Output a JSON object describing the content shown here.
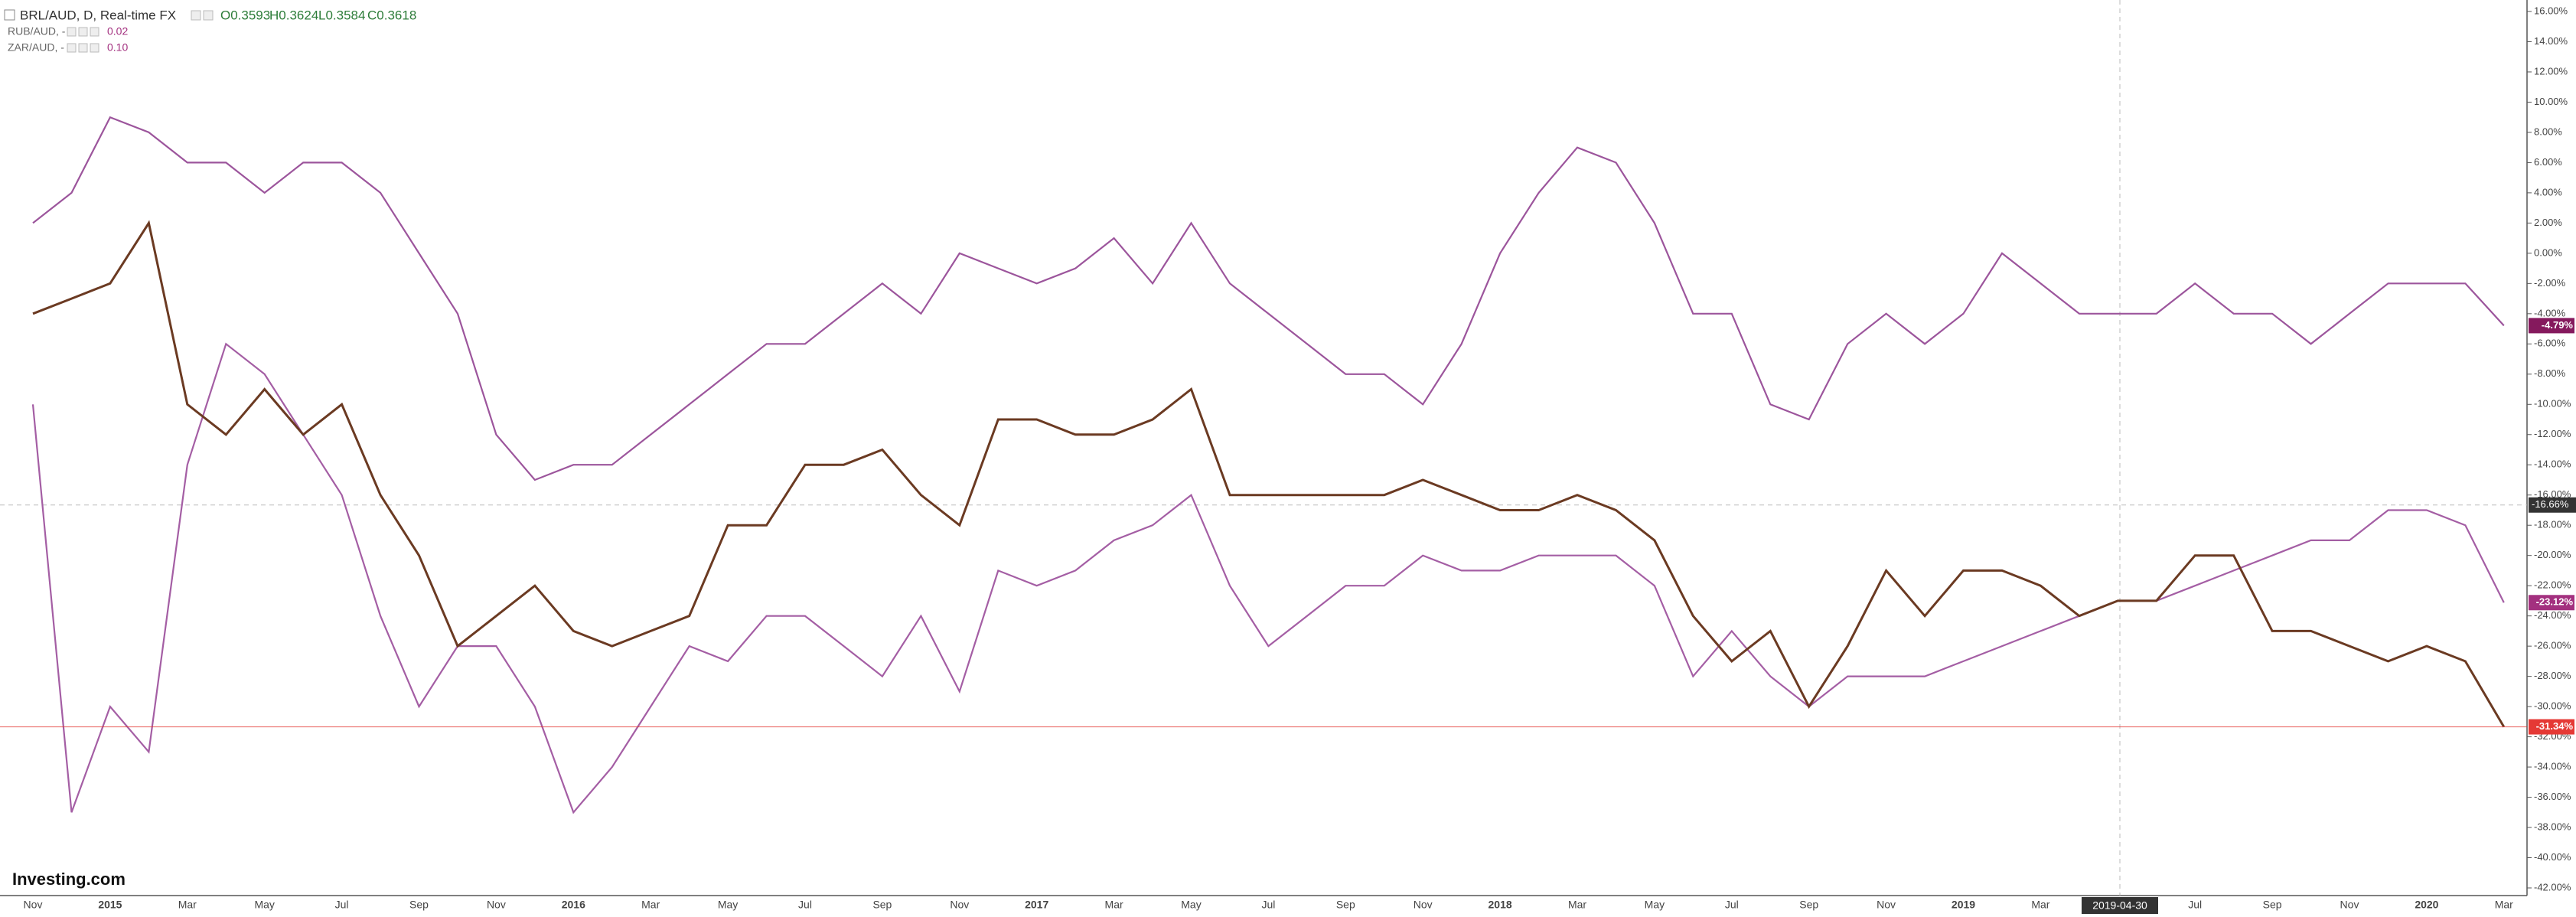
{
  "chart_data": {
    "type": "line",
    "categories": [
      "Nov",
      null,
      "2015",
      null,
      "Mar",
      null,
      "May",
      null,
      "Jul",
      null,
      "Sep",
      null,
      "Nov",
      null,
      "2016",
      null,
      "Mar",
      null,
      "May",
      null,
      "Jul",
      null,
      "Sep",
      null,
      "Nov",
      null,
      "2017",
      null,
      "Mar",
      null,
      "May",
      null,
      "Jul",
      null,
      "Sep",
      null,
      "Nov",
      null,
      "2018",
      null,
      "Mar",
      null,
      "May",
      null,
      "Jul",
      null,
      "Sep",
      null,
      "Nov",
      null,
      "2019",
      null,
      "Mar",
      null,
      null,
      null,
      "Jul",
      null,
      "Sep",
      null,
      "Nov",
      null,
      "2020",
      null,
      "Mar"
    ],
    "series": [
      {
        "name": "BRL/AUD, D, Real-time FX",
        "color": "#6b3a22",
        "tag_color": "#e53935",
        "ohlc_labels": [
          "O0.3593",
          "H0.3624",
          "L0.3584",
          "C0.3618"
        ],
        "last_value_label": "-31.34%",
        "values": [
          -4,
          -3,
          -2,
          2,
          -10,
          -12,
          -9,
          -12,
          -10,
          -16,
          -20,
          -26,
          -24,
          -22,
          -25,
          -26,
          -25,
          -24,
          -18,
          -18,
          -14,
          -14,
          -13,
          -16,
          -18,
          -11,
          -11,
          -12,
          -12,
          -11,
          -9,
          -16,
          -16,
          -16,
          -16,
          -16,
          -15,
          -16,
          -17,
          -17,
          -16,
          -17,
          -19,
          -24,
          -27,
          -25,
          -30,
          -26,
          -21,
          -24,
          -21,
          -21,
          -22,
          -24,
          -23,
          -23,
          -20,
          -20,
          -25,
          -25,
          -26,
          -27,
          -26,
          -27,
          -31.34
        ]
      },
      {
        "name": "RUB/AUD, -",
        "color": "#a45ea4",
        "tag_color": "#a3307f",
        "legend_value": "0.02",
        "last_value_label": "-23.12%",
        "values": [
          -10,
          -37,
          -30,
          -33,
          -14,
          -6,
          -8,
          -12,
          -16,
          -24,
          -30,
          -26,
          -26,
          -30,
          -37,
          -34,
          -30,
          -26,
          -27,
          -24,
          -24,
          -26,
          -28,
          -24,
          -29,
          -21,
          -22,
          -21,
          -19,
          -18,
          -16,
          -22,
          -26,
          -24,
          -22,
          -22,
          -20,
          -21,
          -21,
          -20,
          -20,
          -20,
          -22,
          -28,
          -25,
          -28,
          -30,
          -28,
          -28,
          -28,
          -27,
          -26,
          -25,
          -24,
          -23,
          -23,
          -22,
          -21,
          -20,
          -19,
          -19,
          -17,
          -17,
          -18,
          -23.12
        ]
      },
      {
        "name": "ZAR/AUD, -",
        "color": "#9c559c",
        "tag_color": "#85195d",
        "legend_value": "0.10",
        "last_value_label": "-4.79%",
        "values": [
          2,
          4,
          9,
          8,
          6,
          6,
          4,
          6,
          6,
          4,
          0,
          -4,
          -12,
          -15,
          -14,
          -14,
          -12,
          -10,
          -8,
          -6,
          -6,
          -4,
          -2,
          -4,
          0,
          -1,
          -2,
          -1,
          1,
          -2,
          2,
          -2,
          -4,
          -6,
          -8,
          -8,
          -10,
          -6,
          0,
          4,
          7,
          6,
          2,
          -4,
          -4,
          -10,
          -11,
          -6,
          -4,
          -6,
          -4,
          0,
          -2,
          -4,
          -4,
          -4,
          -2,
          -4,
          -4,
          -6,
          -4,
          -2,
          -2,
          -2,
          -4.79
        ]
      }
    ],
    "ylim": [
      -42,
      16
    ],
    "yticks": [
      {
        "value": 16,
        "label": "16.00%"
      },
      {
        "value": 14,
        "label": "14.00%"
      },
      {
        "value": 12,
        "label": "12.00%"
      },
      {
        "value": 10,
        "label": "10.00%"
      },
      {
        "value": 8,
        "label": "8.00%"
      },
      {
        "value": 6,
        "label": "6.00%"
      },
      {
        "value": 4,
        "label": "4.00%"
      },
      {
        "value": 2,
        "label": "2.00%"
      },
      {
        "value": 0,
        "label": "0.00%"
      },
      {
        "value": -2,
        "label": "-2.00%"
      },
      {
        "value": -4,
        "label": "-4.00%"
      },
      {
        "value": -6,
        "label": "-6.00%"
      },
      {
        "value": -8,
        "label": "-8.00%"
      },
      {
        "value": -10,
        "label": "-10.00%"
      },
      {
        "value": -12,
        "label": "-12.00%"
      },
      {
        "value": -14,
        "label": "-14.00%"
      },
      {
        "value": -16,
        "label": "-16.00%"
      },
      {
        "value": -18,
        "label": "-18.00%"
      },
      {
        "value": -20,
        "label": "-20.00%"
      },
      {
        "value": -22,
        "label": "-22.00%"
      },
      {
        "value": -24,
        "label": "-24.00%"
      },
      {
        "value": -26,
        "label": "-26.00%"
      },
      {
        "value": -28,
        "label": "-28.00%"
      },
      {
        "value": -30,
        "label": "-30.00%"
      },
      {
        "value": -32,
        "label": "-32.00%"
      },
      {
        "value": -34,
        "label": "-34.00%"
      },
      {
        "value": -36,
        "label": "-36.00%"
      },
      {
        "value": -38,
        "label": "-38.00%"
      },
      {
        "value": -40,
        "label": "-40.00%"
      },
      {
        "value": -42,
        "label": "-42.00%"
      }
    ],
    "grid": false,
    "crosshair": {
      "x_label": "2019-04-30",
      "y": {
        "value": -16.66,
        "label": "-16.66%"
      }
    },
    "watermark": "Investing.com"
  }
}
